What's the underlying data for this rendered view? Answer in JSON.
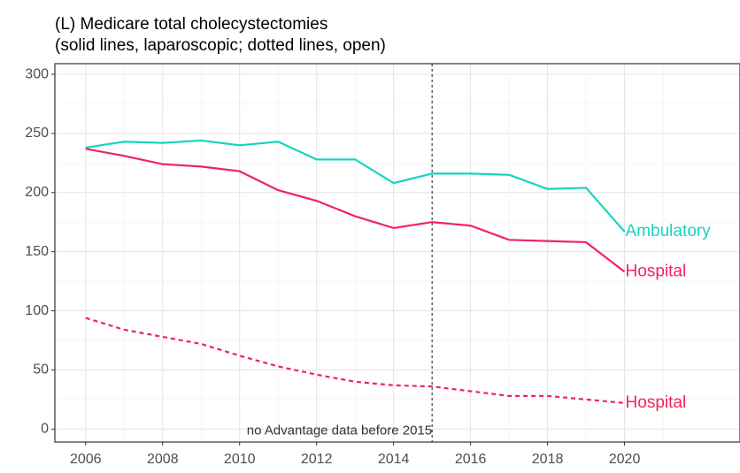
{
  "chart_data": {
    "type": "line",
    "title": "(L) Medicare total cholecystectomies",
    "subtitle": "(solid lines, laparoscopic; dotted lines, open)",
    "x": [
      2006,
      2007,
      2008,
      2009,
      2010,
      2011,
      2012,
      2013,
      2014,
      2015,
      2016,
      2017,
      2018,
      2019,
      2020
    ],
    "series": [
      {
        "name": "Ambulatory",
        "color": "#17d4c0",
        "dotted": false,
        "values": [
          238,
          243,
          242,
          244,
          240,
          243,
          228,
          228,
          208,
          216,
          216,
          215,
          203,
          204,
          167
        ]
      },
      {
        "name": "Hospital",
        "color": "#f0245a",
        "dotted": false,
        "values": [
          237,
          231,
          224,
          222,
          218,
          202,
          193,
          180,
          170,
          175,
          172,
          160,
          159,
          158,
          133
        ]
      },
      {
        "name": "Hospital",
        "color": "#f0245a",
        "dotted": true,
        "values": [
          94,
          84,
          78,
          72,
          62,
          53,
          46,
          40,
          37,
          36,
          32,
          28,
          28,
          25,
          22
        ]
      }
    ],
    "vline": {
      "x": 2015,
      "label": "no Advantage data before 2015"
    },
    "xlim": [
      2005.2,
      2023
    ],
    "xticks": [
      2006,
      2008,
      2010,
      2012,
      2014,
      2016,
      2018,
      2020
    ],
    "ylim": [
      -11,
      309
    ],
    "yticks": [
      0,
      50,
      100,
      150,
      200,
      250,
      300
    ],
    "grid": true
  }
}
